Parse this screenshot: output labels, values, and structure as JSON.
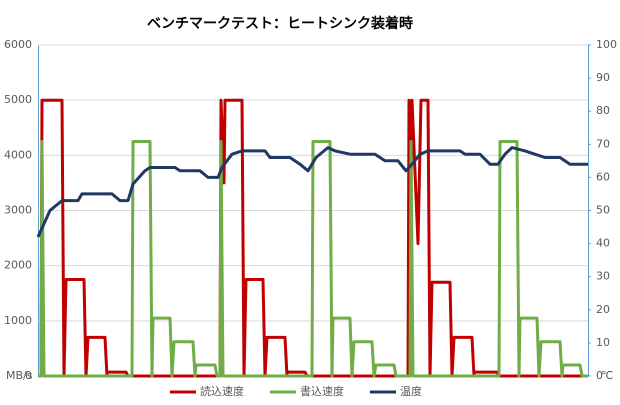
{
  "chart_data": {
    "type": "line",
    "title": "ベンチマークテスト：ヒートシンク装着時",
    "y_label": "MB/s",
    "y2_label": "℃",
    "xlim": [
      0,
      550
    ],
    "ylim": [
      0,
      6000
    ],
    "yticks": [
      0,
      1000,
      2000,
      3000,
      4000,
      5000,
      6000
    ],
    "y2lim": [
      0,
      100
    ],
    "y2ticks": [
      0,
      10,
      20,
      30,
      40,
      50,
      60,
      70,
      80,
      90,
      100
    ],
    "grid": true,
    "legend": "bottom",
    "series": [
      {
        "name": "読込速度",
        "color": "#c00000",
        "x": [
          0,
          3,
          4,
          24,
          26,
          28,
          46,
          48,
          50,
          67,
          69,
          69,
          88,
          90,
          182,
          183,
          186,
          187,
          204,
          206,
          208,
          225,
          227,
          229,
          247,
          249,
          249,
          267,
          269,
          370,
          371,
          373,
          374,
          380,
          383,
          390,
          392,
          394,
          412,
          414,
          416,
          434,
          436,
          436,
          459,
          461,
          550
        ],
        "values": [
          0,
          0,
          5000,
          5000,
          0,
          1750,
          1750,
          0,
          700,
          700,
          0,
          70,
          70,
          0,
          0,
          5000,
          3500,
          5000,
          5000,
          0,
          1750,
          1750,
          0,
          700,
          700,
          0,
          70,
          70,
          0,
          0,
          5000,
          3500,
          5000,
          2400,
          5000,
          5000,
          0,
          1700,
          1700,
          0,
          700,
          700,
          0,
          70,
          70,
          0,
          0
        ]
      },
      {
        "name": "書込速度",
        "color": "#70ad47",
        "x": [
          0,
          3,
          4,
          6,
          94,
          95,
          112,
          114,
          115,
          132,
          134,
          136,
          155,
          157,
          158,
          177,
          179,
          182,
          183,
          185,
          274,
          275,
          292,
          294,
          295,
          312,
          314,
          316,
          334,
          336,
          338,
          356,
          358,
          372,
          373,
          375,
          461,
          462,
          479,
          481,
          482,
          499,
          501,
          503,
          522,
          524,
          525,
          542,
          544,
          550
        ],
        "values": [
          0,
          0,
          4250,
          0,
          0,
          4250,
          4250,
          0,
          1050,
          1050,
          0,
          620,
          620,
          0,
          200,
          200,
          0,
          0,
          4250,
          0,
          0,
          4250,
          4250,
          0,
          1050,
          1050,
          0,
          620,
          620,
          0,
          200,
          200,
          0,
          0,
          4250,
          0,
          0,
          4250,
          4250,
          0,
          1050,
          1050,
          0,
          620,
          620,
          0,
          200,
          200,
          0,
          0
        ]
      },
      {
        "name": "温度",
        "color": "#203864",
        "axis": "y2",
        "x": [
          0,
          12,
          24,
          40,
          44,
          74,
          82,
          90,
          95,
          107,
          112,
          137,
          142,
          162,
          170,
          180,
          184,
          194,
          204,
          227,
          232,
          252,
          262,
          270,
          278,
          290,
          297,
          312,
          337,
          347,
          360,
          368,
          374,
          382,
          390,
          422,
          427,
          442,
          452,
          460,
          467,
          474,
          487,
          507,
          522,
          532,
          550
        ],
        "values": [
          42,
          50,
          53,
          53,
          55,
          55,
          53,
          53,
          58,
          62,
          63,
          63,
          62,
          62,
          60,
          60,
          63,
          67,
          68,
          68,
          66,
          66,
          64,
          62,
          66,
          69,
          68,
          67,
          67,
          65,
          65,
          62,
          64,
          67,
          68,
          68,
          67,
          67,
          64,
          64,
          67,
          69,
          68,
          66,
          66,
          64,
          64
        ]
      }
    ]
  }
}
